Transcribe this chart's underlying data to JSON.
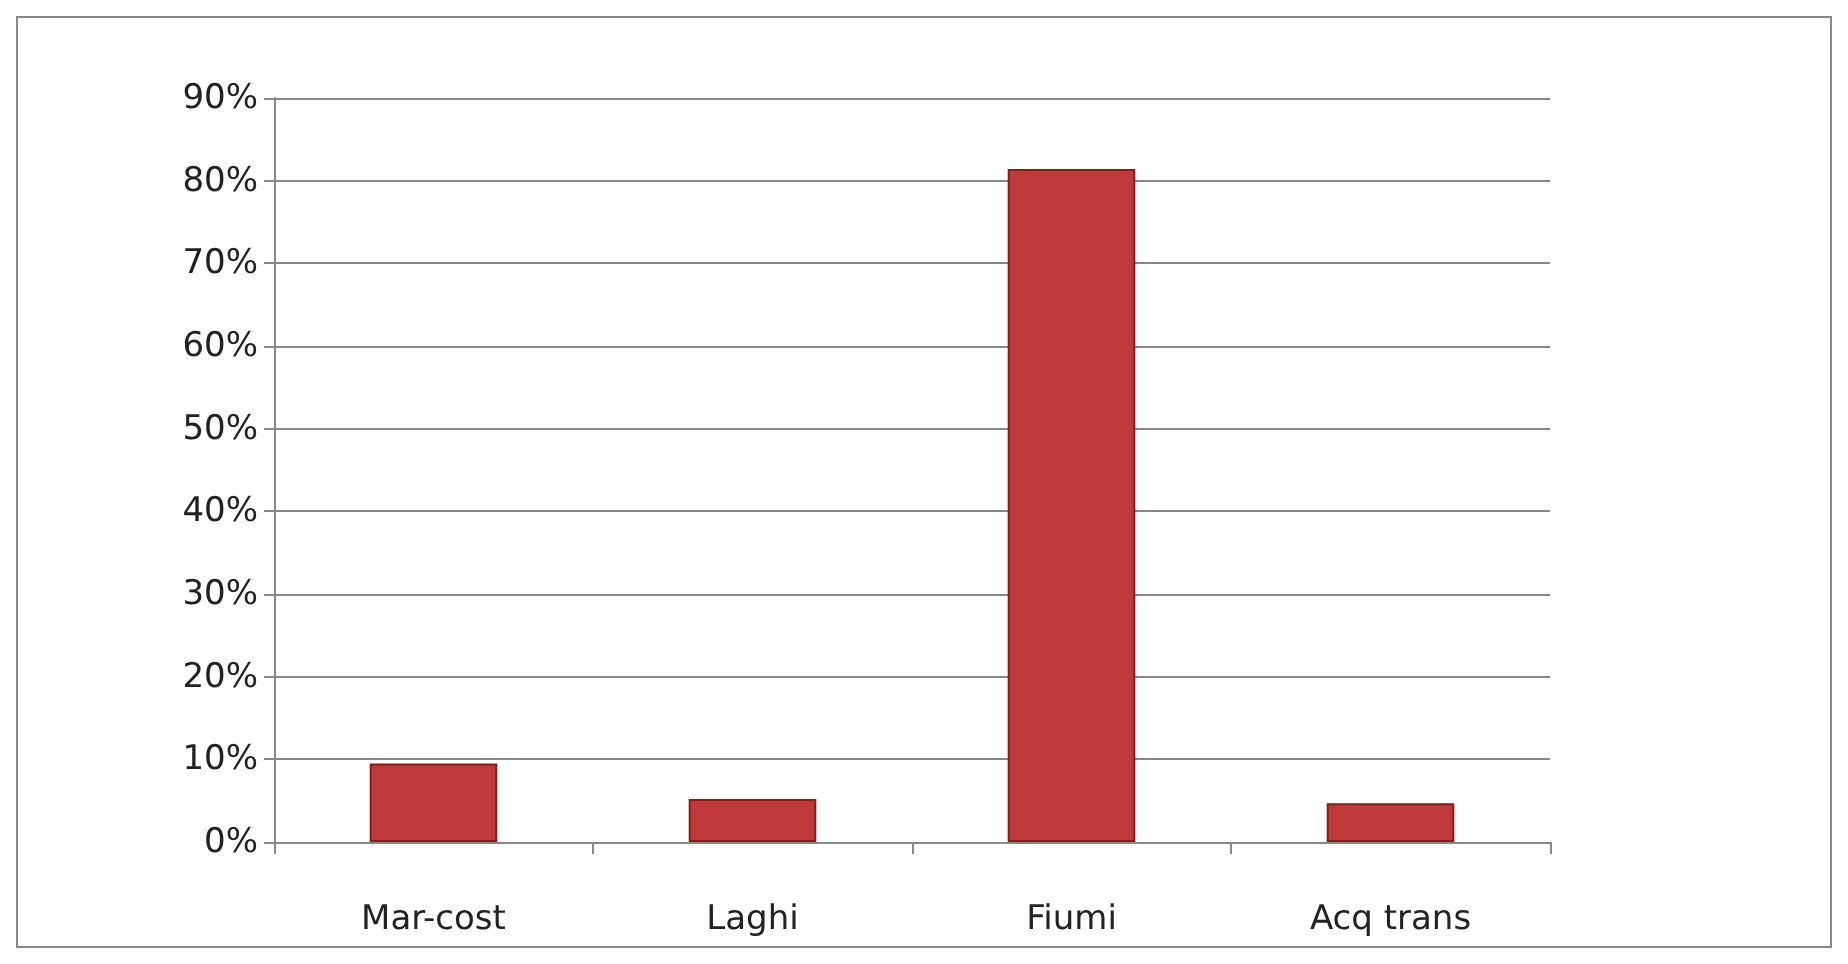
{
  "chart_data": {
    "type": "bar",
    "categories": [
      "Mar-cost",
      "Laghi",
      "Fiumi",
      "Acq trans"
    ],
    "values": [
      9.5,
      5.2,
      81.4,
      4.7
    ],
    "color": "#c0393b",
    "ylim": [
      0,
      90
    ],
    "yticks": [
      {
        "value": 0,
        "label": "0%"
      },
      {
        "value": 10,
        "label": "10%"
      },
      {
        "value": 20,
        "label": "20%"
      },
      {
        "value": 30,
        "label": "30%"
      },
      {
        "value": 40,
        "label": "40%"
      },
      {
        "value": 50,
        "label": "50%"
      },
      {
        "value": 60,
        "label": "60%"
      },
      {
        "value": 70,
        "label": "70%"
      },
      {
        "value": 80,
        "label": "80%"
      },
      {
        "value": 90,
        "label": "90%"
      }
    ],
    "grid": "y"
  }
}
